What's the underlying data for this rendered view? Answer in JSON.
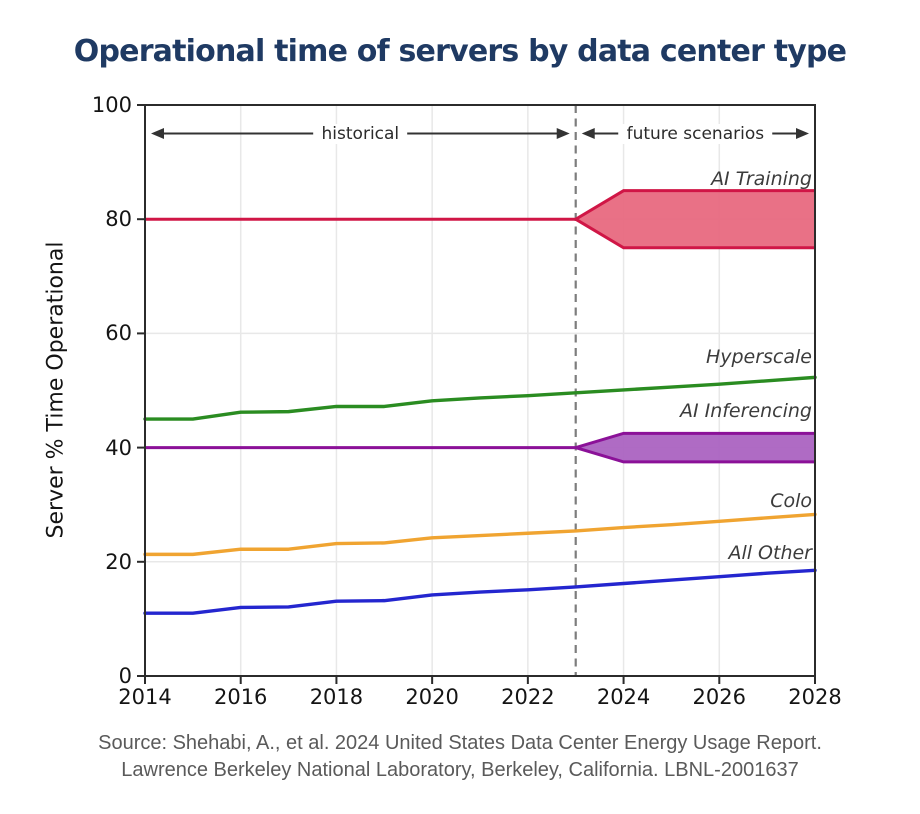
{
  "chart_data": {
    "type": "line",
    "title": "Operational time of servers by data center type",
    "ylabel": "Server % Time Operational",
    "xlabel": "",
    "xlim": [
      2014,
      2028
    ],
    "ylim": [
      0,
      100
    ],
    "x_ticks": [
      2014,
      2016,
      2018,
      2020,
      2022,
      2024,
      2026,
      2028
    ],
    "y_ticks": [
      0,
      20,
      40,
      60,
      80,
      100
    ],
    "grid": true,
    "legend_position": "inline-right",
    "divider_x": 2023,
    "annotations": [
      {
        "text": "historical",
        "x_start": 2014,
        "x_end": 2023,
        "y": 95
      },
      {
        "text": "future scenarios",
        "x_start": 2023,
        "x_end": 2028,
        "y": 95
      }
    ],
    "x": [
      2014,
      2015,
      2016,
      2017,
      2018,
      2019,
      2020,
      2021,
      2022,
      2023,
      2024,
      2025,
      2026,
      2027,
      2028
    ],
    "series": [
      {
        "name": "AI Training",
        "color": "#d01646",
        "fill": "#e8697f",
        "label_y": 87,
        "historical": [
          80,
          80,
          80,
          80,
          80,
          80,
          80,
          80,
          80,
          80
        ],
        "future_band": {
          "x": [
            2023,
            2024,
            2028
          ],
          "upper": [
            80,
            85,
            85
          ],
          "lower": [
            80,
            75,
            75
          ]
        }
      },
      {
        "name": "Hyperscale",
        "color": "#2a8c21",
        "label_y": 55.9,
        "values": [
          45,
          45,
          46.2,
          46.3,
          47.2,
          47.2,
          48.2,
          48.7,
          49.1,
          49.6,
          50.1,
          50.6,
          51.1,
          51.7,
          52.3
        ]
      },
      {
        "name": "AI Inferencing",
        "color": "#8b1198",
        "fill": "#ab63c1",
        "label_y": 46.4,
        "historical": [
          40,
          40,
          40,
          40,
          40,
          40,
          40,
          40,
          40,
          40
        ],
        "future_band": {
          "x": [
            2023,
            2024,
            2028
          ],
          "upper": [
            40,
            42.5,
            42.5
          ],
          "lower": [
            40,
            37.5,
            37.5
          ]
        }
      },
      {
        "name": "Colo",
        "color": "#f0a431",
        "label_y": 30.6,
        "values": [
          21.3,
          21.3,
          22.2,
          22.2,
          23.2,
          23.3,
          24.2,
          24.6,
          25.0,
          25.4,
          26.0,
          26.5,
          27.1,
          27.7,
          28.3
        ]
      },
      {
        "name": "All Other",
        "color": "#2426cf",
        "label_y": 21.5,
        "values": [
          11.0,
          11.0,
          12.0,
          12.1,
          13.1,
          13.2,
          14.2,
          14.7,
          15.1,
          15.6,
          16.2,
          16.8,
          17.4,
          18.0,
          18.5
        ]
      }
    ]
  },
  "source": {
    "line1": "Source: Shehabi, A., et al. 2024 United States Data Center Energy Usage Report.",
    "line2": "Lawrence Berkeley National Laboratory, Berkeley, California. LBNL-2001637"
  },
  "colors": {
    "title": "#1f3a63",
    "axis_text": "#141414",
    "plot_border": "#2b2b2b",
    "grid": "#e8e8e8",
    "divider": "#7d7d7d",
    "annotation_text": "#2b2b2b",
    "series_label_text": "#3c3c3c",
    "source_text": "#5a5a5a"
  }
}
